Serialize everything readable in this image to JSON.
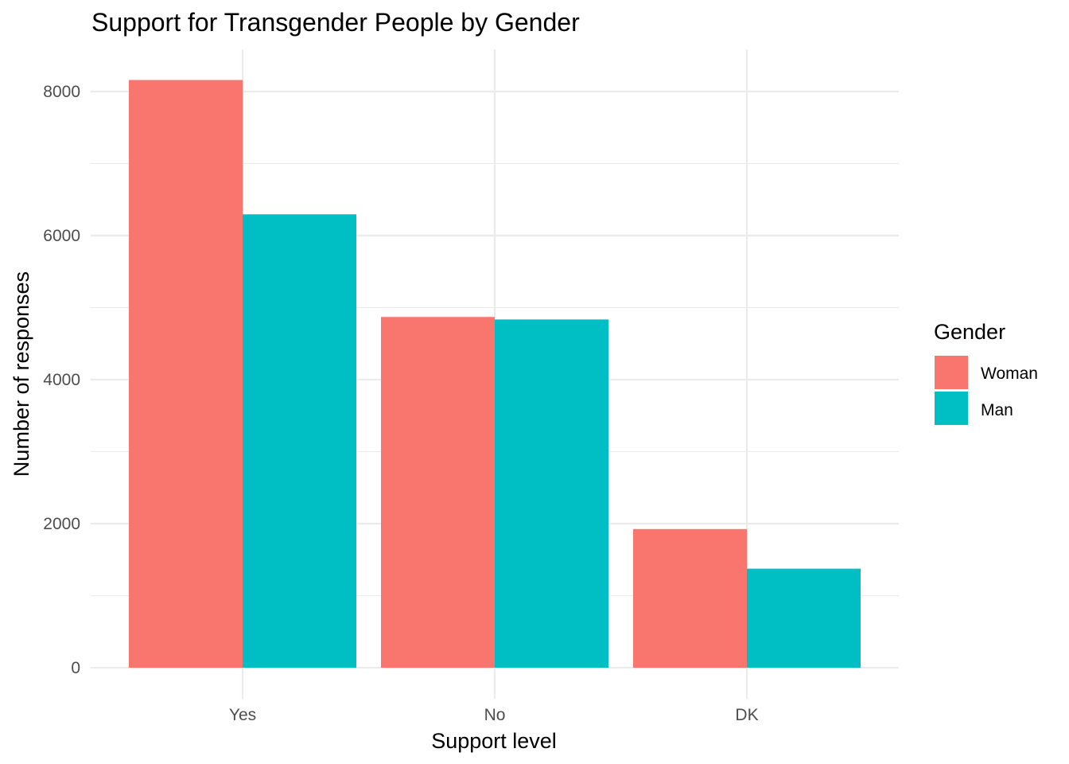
{
  "chart_data": {
    "type": "bar",
    "title": "Support for Transgender People by Gender",
    "xlabel": "Support level",
    "ylabel": "Number of responses",
    "categories": [
      "Yes",
      "No",
      "DK"
    ],
    "series": [
      {
        "name": "Woman",
        "color": "#F8766D",
        "values": [
          8160,
          4870,
          1925
        ]
      },
      {
        "name": "Man",
        "color": "#00BFC4",
        "values": [
          6295,
          4835,
          1375
        ]
      }
    ],
    "ylim": [
      0,
      8580
    ],
    "yticks": [
      "0",
      "2000",
      "4000",
      "6000",
      "8000"
    ],
    "grid": true,
    "legend": {
      "title": "Gender",
      "position": "right"
    }
  }
}
